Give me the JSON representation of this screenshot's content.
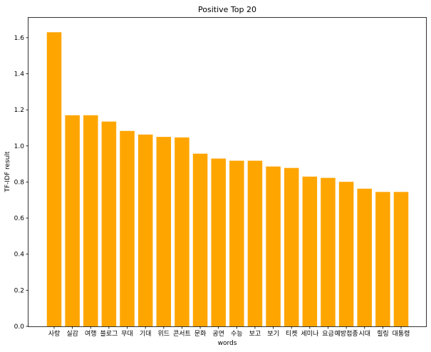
{
  "chart_data": {
    "type": "bar",
    "title": "Positive Top 20",
    "xlabel": "words",
    "ylabel": "TF-IDF result",
    "categories": [
      "사랑",
      "실감",
      "여행",
      "블로그",
      "무대",
      "기대",
      "위드",
      "콘서트",
      "문화",
      "공연",
      "수능",
      "보고",
      "보기",
      "티켓",
      "세미나",
      "요금",
      "예방접종",
      "시대",
      "힐링",
      "대통령"
    ],
    "values": [
      1.63,
      1.17,
      1.17,
      1.135,
      1.083,
      1.063,
      1.05,
      1.047,
      0.957,
      0.93,
      0.918,
      0.918,
      0.886,
      0.878,
      0.83,
      0.823,
      0.801,
      0.763,
      0.745,
      0.745
    ],
    "ylim": [
      0,
      1.71
    ],
    "yticks": [
      "0.0",
      "0.2",
      "0.4",
      "0.6",
      "0.8",
      "1.0",
      "1.2",
      "1.4",
      "1.6"
    ],
    "bar_color": "#ffa500",
    "grid": false
  }
}
